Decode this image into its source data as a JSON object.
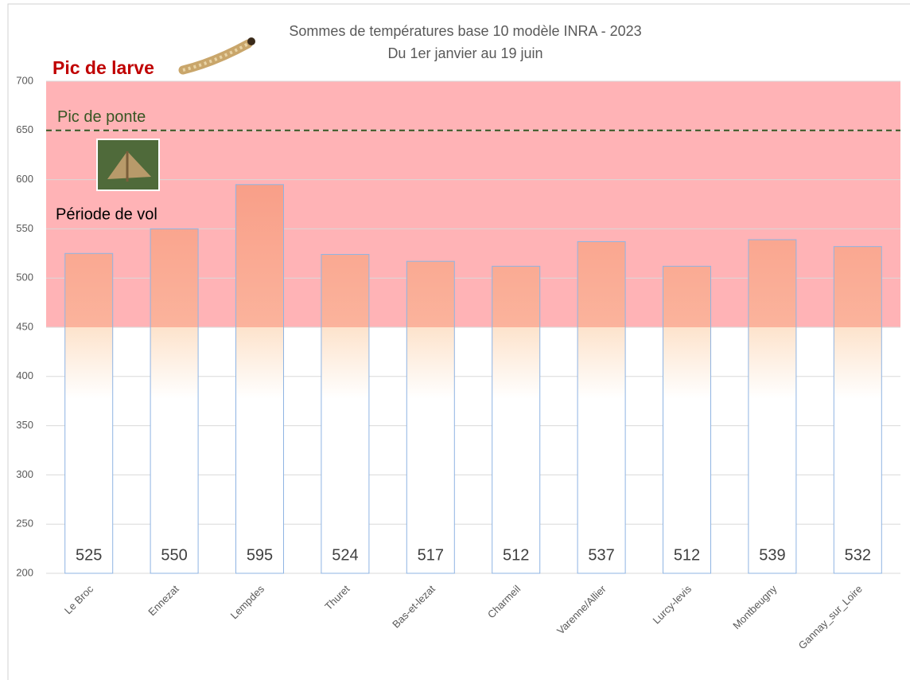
{
  "chart_data": {
    "type": "bar",
    "title": "Sommes de températures base 10 modèle INRA - 2023",
    "subtitle": "Du 1er janvier au 19 juin",
    "categories": [
      "Le Broc",
      "Ennezat",
      "Lempdes",
      "Thuret",
      "Bas-et-lezat",
      "Charmeil",
      "Varenne/Allier",
      "Lurcy-levis",
      "Montbeugny",
      "Gannay_sur_Loire"
    ],
    "values": [
      525,
      550,
      595,
      524,
      517,
      512,
      537,
      512,
      539,
      532
    ],
    "color": "#f7907a",
    "ylim": [
      200,
      700
    ],
    "yticks": [
      200,
      250,
      300,
      350,
      400,
      450,
      500,
      550,
      600,
      650,
      700
    ],
    "grid": true,
    "bands": [
      {
        "from": 450,
        "to": 700,
        "color": "#ffb3b6"
      }
    ],
    "reference_lines": [
      {
        "value": 650,
        "label": "Pic de ponte",
        "color": "#375623"
      }
    ],
    "annotations": [
      "Pic de larve",
      "Période de vol"
    ]
  }
}
